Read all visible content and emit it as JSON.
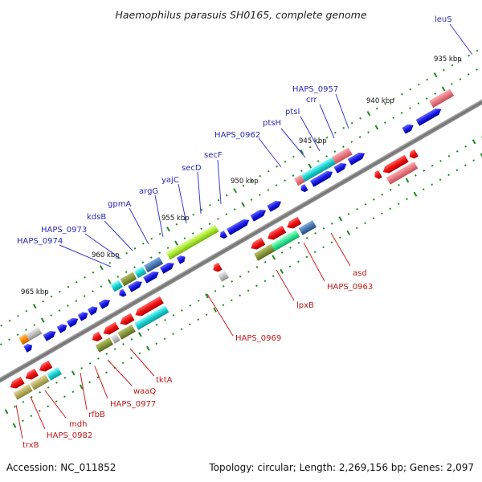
{
  "title": "Haemophilus parasuis SH0165, complete genome",
  "footer": {
    "accession": "Accession: NC_011852",
    "summary": "Topology: circular; Length: 2,269,156 bp; Genes: 2,097"
  },
  "kbp_labels": [
    {
      "text": "935 kbp",
      "kbp": 935
    },
    {
      "text": "940 kbp",
      "kbp": 940
    },
    {
      "text": "945 kbp",
      "kbp": 945
    },
    {
      "text": "950 kbp",
      "kbp": 950
    },
    {
      "text": "955 kbp",
      "kbp": 955
    },
    {
      "text": "960 kbp",
      "kbp": 960
    },
    {
      "text": "965 kbp",
      "kbp": 965
    }
  ],
  "top_labels": [
    "leuS",
    "HAPS_0957",
    "crr",
    "ptsI",
    "ptsH",
    "HAPS_0962",
    "secF",
    "secD",
    "yajC",
    "argG",
    "gpmA",
    "kdsB",
    "HAPS_0973",
    "HAPS_0974"
  ],
  "bottom_labels": [
    "asd",
    "HAPS_0963",
    "lpxB",
    "HAPS_0969",
    "tktA",
    "waaQ",
    "HAPS_0977",
    "rfbB",
    "mdh",
    "HAPS_0982",
    "trxB"
  ],
  "colors": {
    "backbone": "#7a7a7a",
    "tick": "#1e8a1e",
    "cds_strand": "#2020e0",
    "red": "#e81010",
    "salmon": "#e87880",
    "cyan": "#18d0d0",
    "lime": "#a8e830",
    "olive": "#88983a",
    "khaki": "#b8b060",
    "gray": "#c0c0c0",
    "steel": "#4a78b0",
    "mint": "#30e890",
    "orange": "#ff8a00"
  }
}
